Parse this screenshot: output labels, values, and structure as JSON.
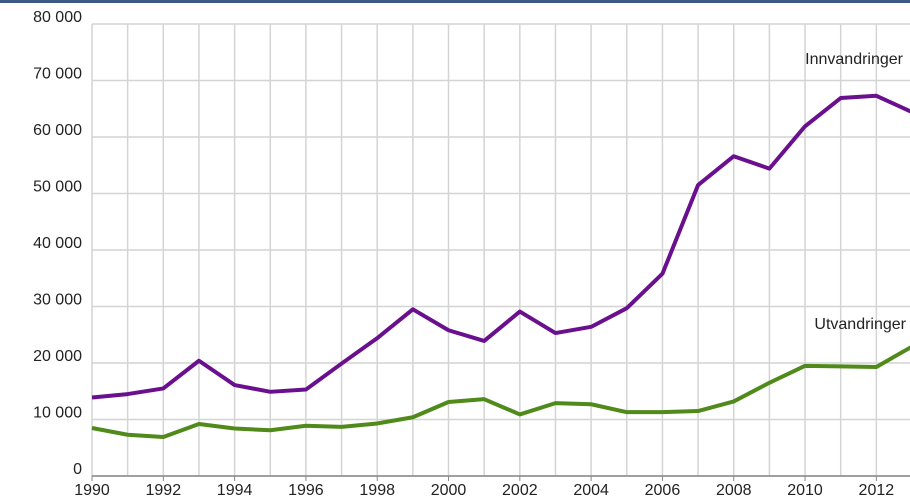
{
  "chart_data": {
    "type": "line",
    "x": [
      1990,
      1991,
      1992,
      1993,
      1994,
      1995,
      1996,
      1997,
      1998,
      1999,
      2000,
      2001,
      2002,
      2003,
      2004,
      2005,
      2006,
      2007,
      2008,
      2009,
      2010,
      2011,
      2012,
      2013
    ],
    "series": [
      {
        "name": "Innvandringer",
        "color": "#6a0f8e",
        "values": [
          13900,
          14500,
          15500,
          20400,
          16100,
          14900,
          15300,
          19900,
          24400,
          29500,
          25800,
          23900,
          29100,
          25300,
          26400,
          29700,
          35800,
          51500,
          56600,
          54400,
          61900,
          66900,
          67300,
          64400
        ]
      },
      {
        "name": "Utvandringer",
        "color": "#4f8a1a",
        "values": [
          8500,
          7300,
          6900,
          9200,
          8400,
          8100,
          8900,
          8700,
          9300,
          10400,
          13100,
          13600,
          10900,
          12900,
          12700,
          11300,
          11300,
          11500,
          13200,
          16500,
          19500,
          19400,
          19300,
          22900
        ]
      }
    ],
    "xlim": [
      1990,
      2013
    ],
    "xticks": [
      1990,
      1992,
      1994,
      1996,
      1998,
      2000,
      2002,
      2004,
      2006,
      2008,
      2010,
      2012
    ],
    "ylim": [
      0,
      80000
    ],
    "yticks": [
      0,
      {
        "value": 10000,
        "label": "10 000"
      },
      {
        "value": 20000,
        "label": "20 000"
      },
      {
        "value": 30000,
        "label": "30 000"
      },
      {
        "value": 40000,
        "label": "40 000"
      },
      {
        "value": 50000,
        "label": "50 000"
      },
      {
        "value": 60000,
        "label": "60 000"
      },
      {
        "value": 70000,
        "label": "70 000"
      },
      {
        "value": 80000,
        "label": "80 000"
      }
    ],
    "grid": true
  }
}
